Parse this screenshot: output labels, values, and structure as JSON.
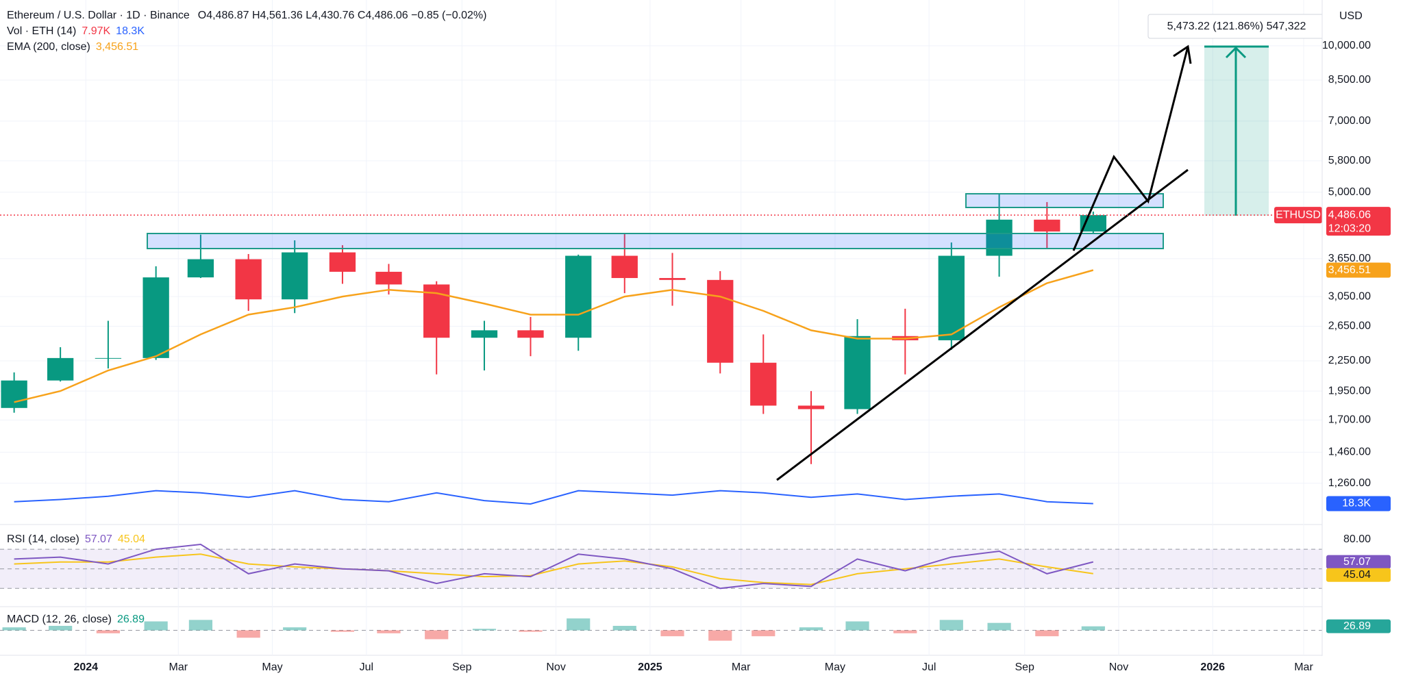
{
  "header": {
    "symbol": "Ethereum / U.S. Dollar · 1D · Binance",
    "ohlc": "O4,486.87 H4,561.36 L4,430.76 C4,486.06 −0.85 (−0.02%)"
  },
  "drawings": {
    "long_position_label": "5,473.22 (121.86%) 547,322"
  },
  "chart_data": {
    "type": "candlestick",
    "x": [
      "2023-11",
      "2023-12",
      "2024-01",
      "2024-02",
      "2024-03",
      "2024-04",
      "2024-05",
      "2024-06",
      "2024-07",
      "2024-08",
      "2024-09",
      "2024-10",
      "2024-11",
      "2024-12",
      "2025-01",
      "2025-02",
      "2025-03",
      "2025-04",
      "2025-05",
      "2025-06",
      "2025-07",
      "2025-08",
      "2025-09",
      "2025-10"
    ],
    "xlim": [
      "2023-11",
      "2026-03"
    ],
    "xticks": [
      {
        "value": "2024-01",
        "label": "2024"
      },
      {
        "value": "2024-03",
        "label": "Mar"
      },
      {
        "value": "2024-05",
        "label": "May"
      },
      {
        "value": "2024-07",
        "label": "Jul"
      },
      {
        "value": "2024-09",
        "label": "Sep"
      },
      {
        "value": "2024-11",
        "label": "Nov"
      },
      {
        "value": "2025-01",
        "label": "2025"
      },
      {
        "value": "2025-03",
        "label": "Mar"
      },
      {
        "value": "2025-05",
        "label": "May"
      },
      {
        "value": "2025-07",
        "label": "Jul"
      },
      {
        "value": "2025-09",
        "label": "Sep"
      },
      {
        "value": "2025-11",
        "label": "Nov"
      },
      {
        "value": "2026-01",
        "label": "2026"
      },
      {
        "value": "2026-03",
        "label": "Mar"
      }
    ],
    "currency": "USD",
    "log_scale": true,
    "grid": true,
    "ylim": [
      1040,
      12420
    ],
    "yticks": [
      {
        "value": 1260,
        "label": "1,260.00"
      },
      {
        "value": 1460,
        "label": "1,460.00"
      },
      {
        "value": 1700,
        "label": "1,700.00"
      },
      {
        "value": 1950,
        "label": "1,950.00"
      },
      {
        "value": 2250,
        "label": "2,250.00"
      },
      {
        "value": 2650,
        "label": "2,650.00"
      },
      {
        "value": 3050,
        "label": "3,050.00"
      },
      {
        "value": 3650,
        "label": "3,650.00"
      },
      {
        "value": 5000,
        "label": "5,000.00"
      },
      {
        "value": 5800,
        "label": "5,800.00"
      },
      {
        "value": 7000,
        "label": "7,000.00"
      },
      {
        "value": 8500,
        "label": "8,500.00"
      },
      {
        "value": 10000,
        "label": "10,000.00"
      }
    ],
    "series": [
      {
        "name": "ETHUSD",
        "up_color": "#089981",
        "down_color": "#f23645",
        "open": [
          1800,
          2050,
          2280,
          2280,
          3340,
          3640,
          3010,
          3760,
          3430,
          3230,
          2510,
          2600,
          2510,
          3700,
          3330,
          3300,
          2230,
          1820,
          1790,
          2530,
          2480,
          3700,
          4390,
          4150
        ],
        "high": [
          2130,
          2400,
          2720,
          3520,
          4090,
          3730,
          3980,
          3890,
          3560,
          3280,
          2720,
          2770,
          3720,
          4110,
          3750,
          3440,
          2550,
          1950,
          2740,
          2880,
          3940,
          4950,
          4770,
          4561.36
        ],
        "low": [
          1760,
          2040,
          2170,
          2260,
          3330,
          2850,
          2820,
          3240,
          3080,
          2110,
          2150,
          2300,
          2360,
          3100,
          2920,
          2120,
          1750,
          1380,
          1750,
          2110,
          2370,
          3350,
          3820,
          4120
        ],
        "close": [
          2050,
          2280,
          2280,
          3340,
          3640,
          3010,
          3760,
          3430,
          3230,
          2510,
          2600,
          2510,
          3700,
          3330,
          3300,
          2230,
          1820,
          1790,
          2530,
          2480,
          3700,
          4390,
          4150,
          4486.06
        ],
        "last_label": "4,486.06",
        "countdown": "12:03:20"
      },
      {
        "name": "EMA (200, close)",
        "type": "line",
        "color": "#f7a21b",
        "values": [
          1850,
          1950,
          2150,
          2300,
          2550,
          2800,
          2900,
          3050,
          3150,
          3100,
          2950,
          2800,
          2800,
          3050,
          3150,
          3050,
          2850,
          2600,
          2500,
          2500,
          2550,
          2900,
          3250,
          3456.51
        ],
        "last_label": "3,456.51"
      }
    ],
    "volume": {
      "name": "Vol · ETH (14)",
      "current_label": "7.97K",
      "current_color": "#f23645",
      "ma_color": "#2962ff",
      "ma": [
        20000,
        22000,
        25000,
        30000,
        28000,
        24000,
        30000,
        22000,
        20000,
        28000,
        21000,
        18000,
        30000,
        28000,
        26000,
        30000,
        28000,
        24000,
        27000,
        22000,
        25000,
        27000,
        20000,
        18300
      ],
      "ma_label": "18.3K",
      "ylim": [
        0,
        150000
      ]
    },
    "rsi": {
      "name": "RSI (14, close)",
      "type": "line",
      "color": "#7e57c2",
      "ma_color": "#f7c51b",
      "values": [
        60,
        62,
        55,
        70,
        75,
        45,
        55,
        50,
        48,
        35,
        45,
        42,
        65,
        60,
        50,
        30,
        35,
        32,
        60,
        48,
        62,
        68,
        45,
        57.07
      ],
      "ma": [
        55,
        57,
        57,
        62,
        65,
        55,
        52,
        50,
        48,
        45,
        42,
        43,
        55,
        58,
        52,
        40,
        36,
        34,
        45,
        50,
        55,
        60,
        52,
        45.04
      ],
      "ylim": [
        12.7,
        91.8
      ],
      "yticks": [
        {
          "value": 80,
          "label": "80.00"
        }
      ],
      "bands": [
        30,
        50,
        70
      ]
    },
    "macd": {
      "name": "MACD (12, 26, close)",
      "type": "bar",
      "histogram": [
        20,
        30,
        -20,
        60,
        70,
        -50,
        20,
        -10,
        -20,
        -60,
        10,
        -10,
        80,
        30,
        -40,
        -70,
        -40,
        20,
        60,
        -20,
        70,
        50,
        -40,
        26.89
      ],
      "ylim": [
        -150,
        150
      ],
      "up_color": "#26a69a",
      "down_color": "#ef5350"
    }
  }
}
